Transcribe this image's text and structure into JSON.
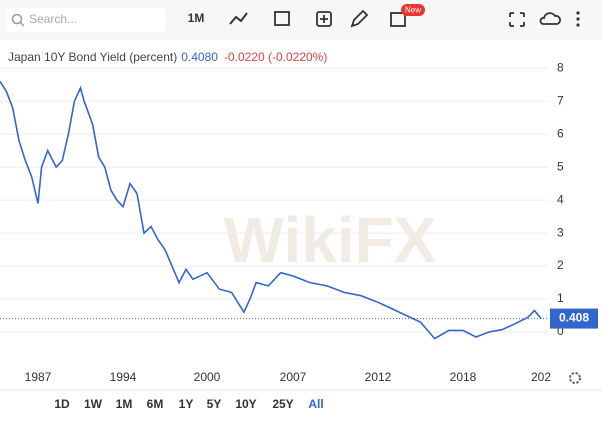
{
  "toolbar": {
    "search_placeholder": "Search...",
    "interval": "1M",
    "badge": "New"
  },
  "watermark": "WikiFX",
  "range_buttons": [
    "1D",
    "1W",
    "1M",
    "6M",
    "1Y",
    "5Y",
    "10Y",
    "25Y",
    "All"
  ],
  "chart_data": {
    "type": "line",
    "title": "Japan 10Y Bond Yield (percent)",
    "last": "0.4080",
    "change": "-0.0220 (-0.0220%)",
    "color": "#3366cc",
    "last_price": 0.408,
    "x": [
      1984,
      1984.5,
      1985,
      1985.5,
      1986,
      1986.5,
      1987,
      1987.3,
      1987.8,
      1988.5,
      1989,
      1989.5,
      1990,
      1990.5,
      1990.8,
      1991,
      1991.5,
      1992,
      1992.5,
      1993,
      1993.5,
      1994,
      1994.5,
      1995,
      1995.5,
      1996,
      1996.5,
      1997,
      1997.5,
      1998,
      1998.5,
      1999,
      2000,
      2001,
      2002,
      2003,
      2003.5,
      2004,
      2005,
      2006,
      2007,
      2008,
      2009,
      2010,
      2011,
      2012,
      2013,
      2014,
      2015,
      2016,
      2017,
      2018,
      2019,
      2020,
      2021,
      2022,
      2023,
      2023.5,
      2024
    ],
    "values": [
      7.6,
      7.3,
      6.8,
      5.8,
      5.2,
      4.7,
      3.9,
      5.0,
      5.5,
      5.0,
      5.2,
      6.0,
      7.0,
      7.4,
      7.0,
      6.8,
      6.3,
      5.3,
      5.0,
      4.3,
      4.0,
      3.8,
      4.5,
      4.2,
      3.0,
      3.2,
      2.8,
      2.5,
      2.0,
      1.5,
      1.9,
      1.6,
      1.8,
      1.3,
      1.2,
      0.6,
      1.0,
      1.5,
      1.4,
      1.8,
      1.7,
      1.5,
      1.4,
      1.2,
      1.1,
      0.9,
      0.7,
      0.5,
      0.3,
      -0.2,
      0.05,
      0.05,
      -0.15,
      0.0,
      0.07,
      0.25,
      0.45,
      0.65,
      0.41
    ],
    "xlim": [
      1984,
      2024.5
    ],
    "xticks": [
      1987,
      1994,
      2000,
      2007,
      2012,
      2018,
      {
        "value": 2024,
        "label": "202"
      }
    ],
    "ylim": [
      -1,
      8.4
    ],
    "yticks": [
      0,
      1,
      2,
      3,
      4,
      5,
      6,
      7,
      8
    ],
    "grid": true
  }
}
